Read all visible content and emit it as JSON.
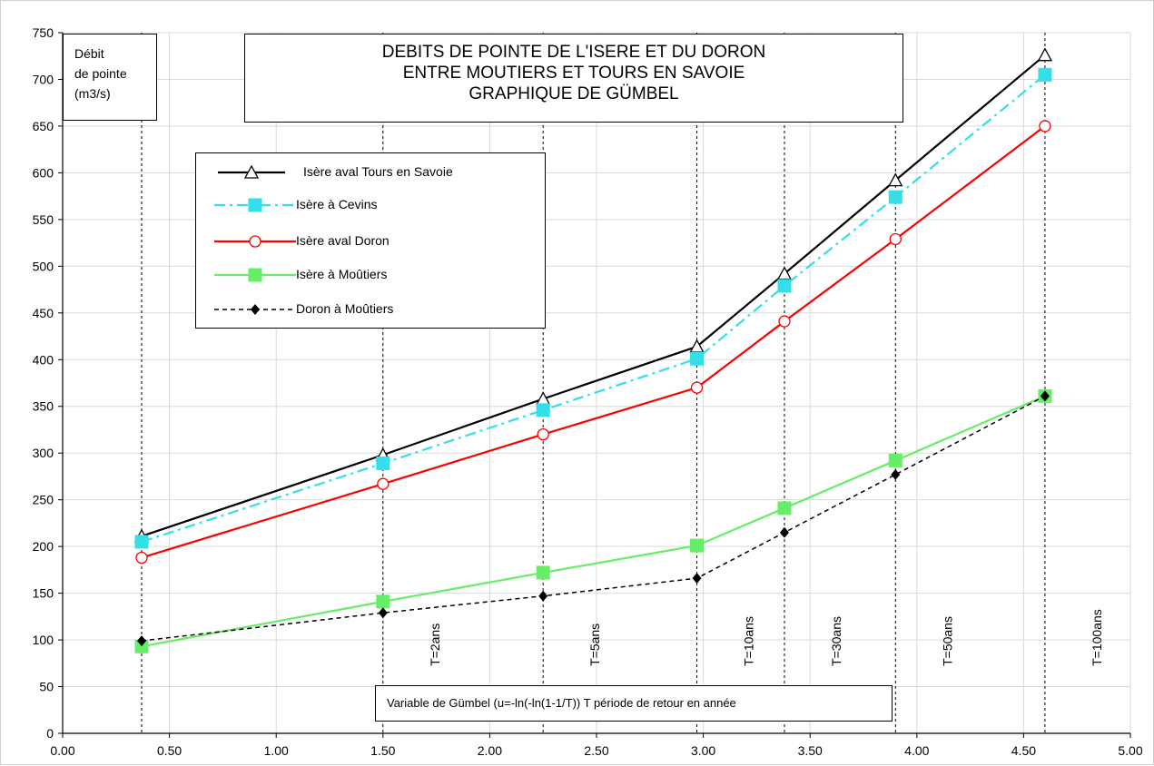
{
  "chart_data": {
    "type": "line",
    "title_lines": [
      "DEBITS DE POINTE DE L'ISERE  ET DU DORON",
      "ENTRE MOUTIERS ET TOURS EN SAVOIE",
      "GRAPHIQUE DE GÜMBEL"
    ],
    "ylabel_lines": [
      "Débit",
      "de pointe",
      "(m3/s)"
    ],
    "xlabel": "Variable de Gümbel (u=-ln(-ln(1-1/T))    T période de retour en année",
    "xlim": [
      0,
      5
    ],
    "ylim": [
      0,
      750
    ],
    "xticks": [
      "0.00",
      "0.50",
      "1.00",
      "1.50",
      "2.00",
      "2.50",
      "3.00",
      "3.50",
      "4.00",
      "4.50",
      "5.00"
    ],
    "yticks": [
      "0",
      "50",
      "100",
      "150",
      "200",
      "250",
      "300",
      "350",
      "400",
      "450",
      "500",
      "550",
      "600",
      "650",
      "700",
      "750"
    ],
    "grid": true,
    "legend_position": "upper-left",
    "x": [
      0.37,
      1.5,
      2.25,
      2.97,
      3.38,
      3.9,
      4.6
    ],
    "return_periods": [
      {
        "x": 0.37,
        "label": ""
      },
      {
        "x": 1.5,
        "label": "T=2ans"
      },
      {
        "x": 2.25,
        "label": "T=5ans"
      },
      {
        "x": 2.97,
        "label": "T=10ans"
      },
      {
        "x": 3.38,
        "label": "T=30ans"
      },
      {
        "x": 3.9,
        "label": "T=50ans"
      },
      {
        "x": 4.6,
        "label": "T=100ans"
      }
    ],
    "series": [
      {
        "name": "Isère aval Tours en Savoie",
        "color": "#000000",
        "dash": "",
        "marker": "triangle",
        "values": [
          211,
          298,
          358,
          414,
          492,
          592,
          726
        ]
      },
      {
        "name": "Isère à Cevins",
        "color": "#33e0ea",
        "dash": "12,5,3,5",
        "marker": "square-filled",
        "values": [
          205,
          289,
          346,
          401,
          479,
          574,
          705
        ]
      },
      {
        "name": "Isère aval Doron",
        "color": "#ff0000",
        "dash": "",
        "marker": "circle-open",
        "values": [
          188,
          267,
          320,
          370,
          441,
          529,
          650
        ]
      },
      {
        "name": "Isère à Moûtiers",
        "color": "#66ee66",
        "dash": "",
        "marker": "square-filled",
        "values": [
          93,
          141,
          172,
          201,
          241,
          292,
          361
        ]
      },
      {
        "name": "Doron à Moûtiers",
        "color": "#000000",
        "dash": "5,4",
        "marker": "diamond",
        "values": [
          99,
          129,
          147,
          166,
          215,
          277,
          361
        ]
      }
    ]
  }
}
